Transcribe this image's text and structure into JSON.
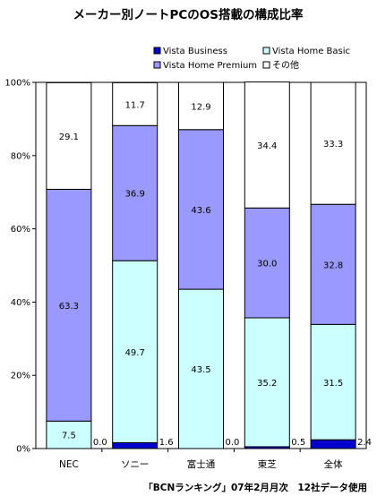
{
  "chart_data": {
    "type": "bar",
    "stacked": true,
    "title": "メーカー別ノートPCのOS搭載の構成比率",
    "source": "「BCNランキング」07年2月月次　12社データ使用",
    "categories": [
      "NEC",
      "ソニー",
      "富士通",
      "東芝",
      "全体"
    ],
    "series": [
      {
        "name": "Vista Business",
        "color": "#0000cc",
        "values": [
          0.0,
          1.6,
          0.0,
          0.5,
          2.4
        ]
      },
      {
        "name": "Vista Home Basic",
        "color": "#ccffff",
        "values": [
          7.5,
          49.7,
          43.5,
          35.2,
          31.5
        ]
      },
      {
        "name": "Vista Home Premium",
        "color": "#9999ff",
        "values": [
          63.3,
          36.9,
          43.6,
          30.0,
          32.8
        ]
      },
      {
        "name": "その他",
        "color": "#ffffff",
        "values": [
          29.1,
          11.7,
          12.9,
          34.4,
          33.3
        ]
      }
    ],
    "value_labels": [
      [
        "0.0",
        "7.5",
        "63.3",
        "29.1"
      ],
      [
        "1.6",
        "49.7",
        "36.9",
        "11.7"
      ],
      [
        "0.0",
        "43.5",
        "43.6",
        "12.9"
      ],
      [
        "0.5",
        "35.2",
        "30.0",
        "34.4"
      ],
      [
        "2.4",
        "31.5",
        "32.8",
        "33.3"
      ]
    ],
    "yticks": [
      "0%",
      "20%",
      "40%",
      "60%",
      "80%",
      "100%"
    ],
    "ylim": [
      0,
      100
    ],
    "grid": false,
    "legend": "top"
  }
}
